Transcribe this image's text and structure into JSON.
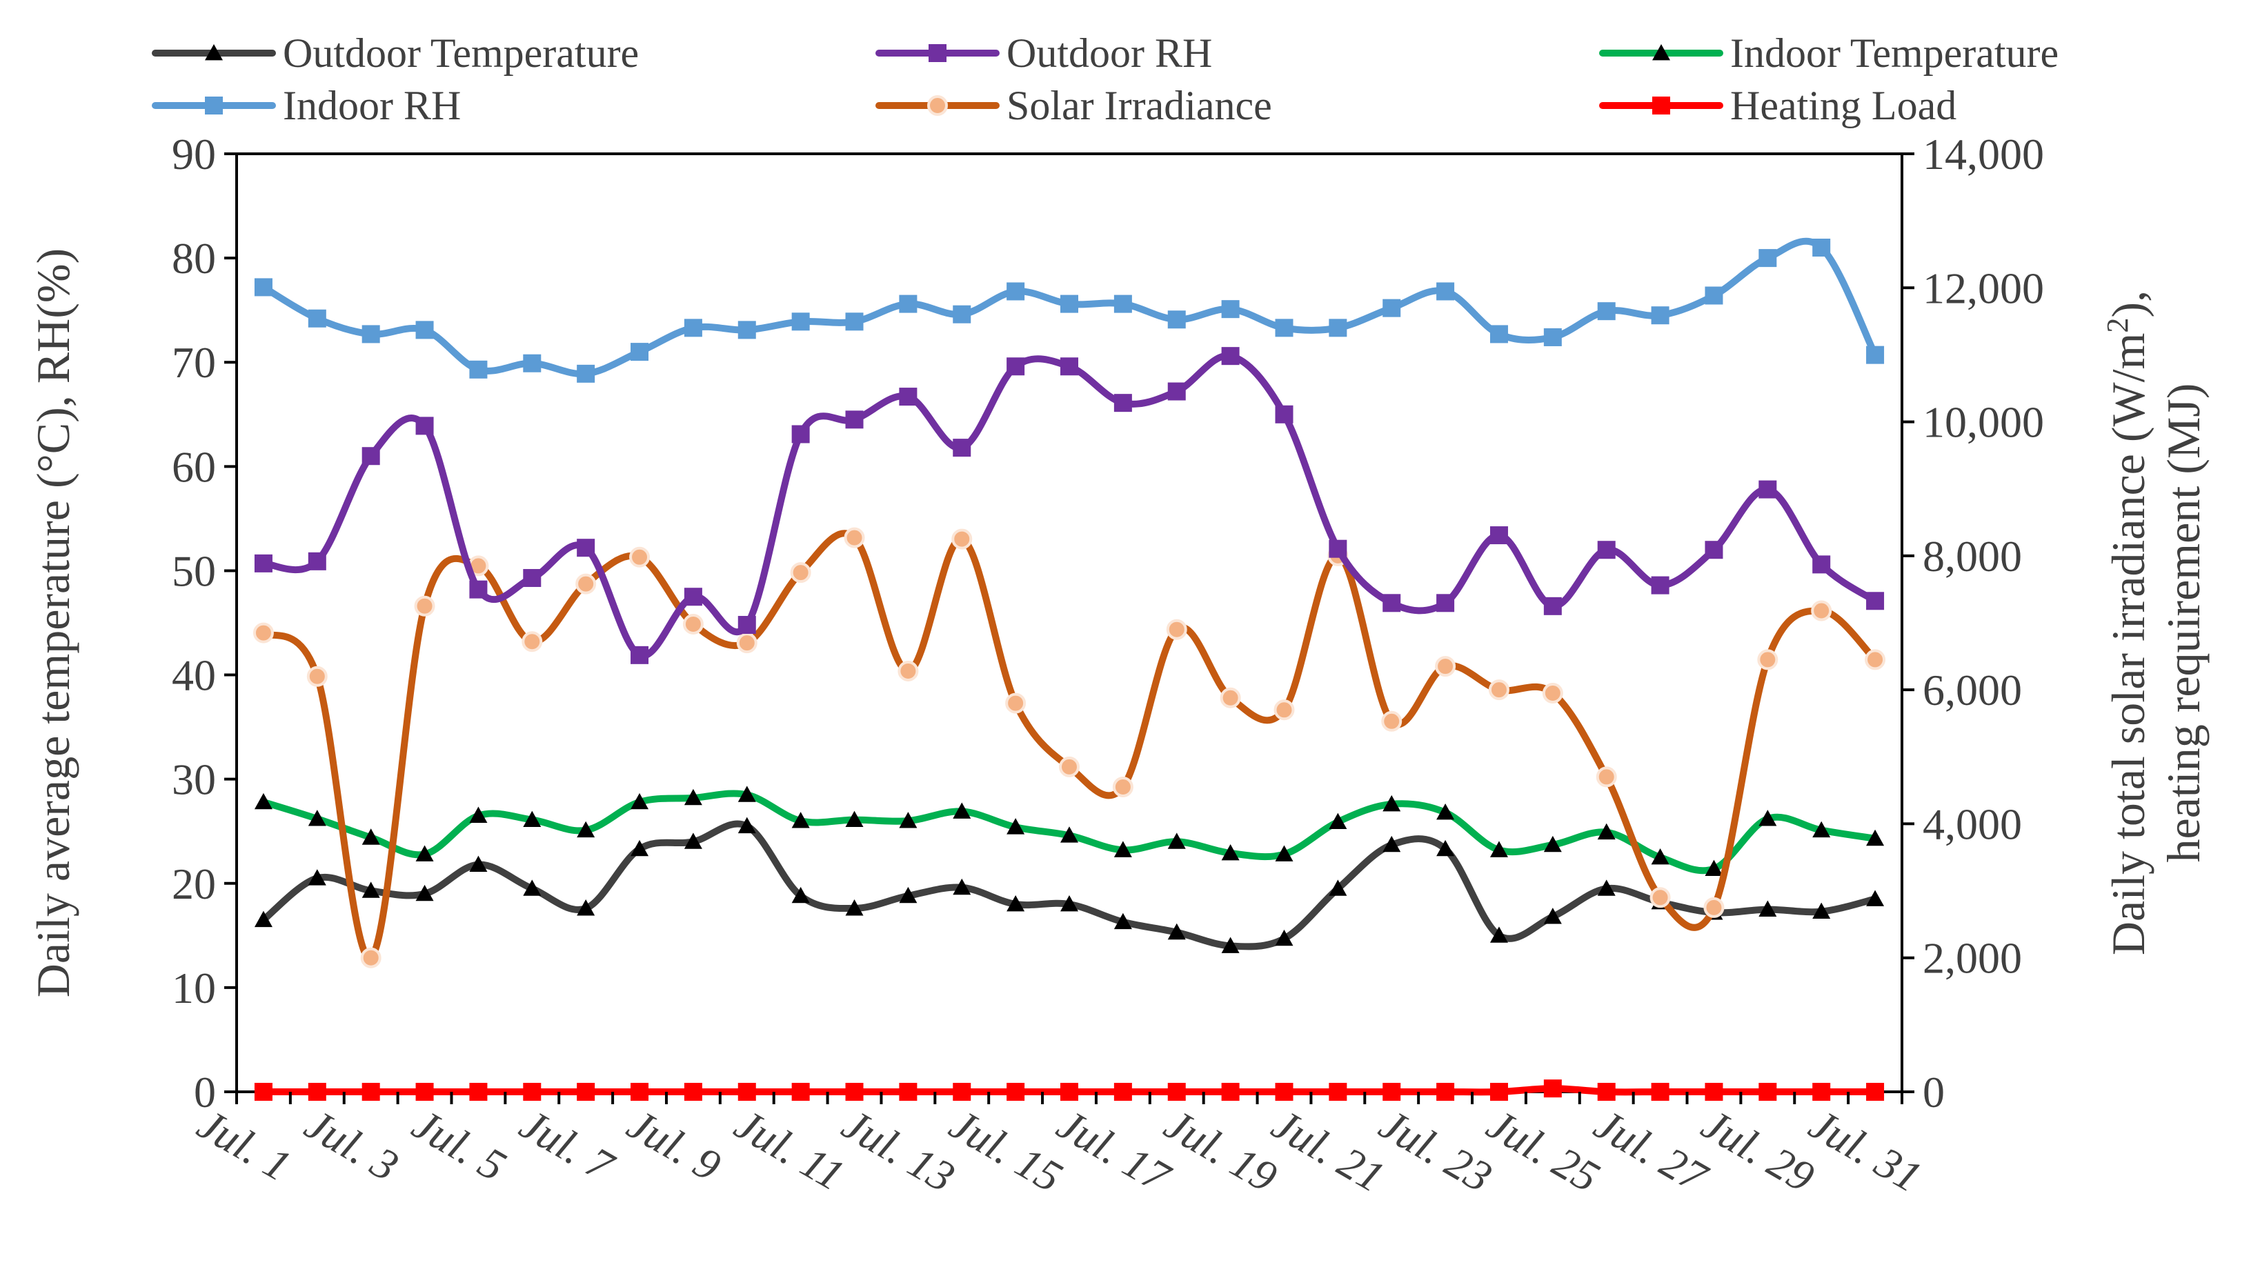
{
  "chart_data": {
    "type": "line",
    "categories": [
      "Jul. 1",
      "Jul. 2",
      "Jul. 3",
      "Jul. 4",
      "Jul. 5",
      "Jul. 6",
      "Jul. 7",
      "Jul. 8",
      "Jul. 9",
      "Jul. 10",
      "Jul. 11",
      "Jul. 12",
      "Jul. 13",
      "Jul. 14",
      "Jul. 15",
      "Jul. 16",
      "Jul. 17",
      "Jul. 18",
      "Jul. 19",
      "Jul. 20",
      "Jul. 21",
      "Jul. 22",
      "Jul. 23",
      "Jul. 24",
      "Jul. 25",
      "Jul. 26",
      "Jul. 27",
      "Jul. 28",
      "Jul. 29",
      "Jul. 30",
      "Jul. 31"
    ],
    "x_tick_labels": [
      "Jul. 1",
      "Jul. 3",
      "Jul. 5",
      "Jul. 7",
      "Jul. 9",
      "Jul. 11",
      "Jul. 13",
      "Jul. 15",
      "Jul. 17",
      "Jul. 19",
      "Jul. 21",
      "Jul. 23",
      "Jul. 25",
      "Jul. 27",
      "Jul. 29",
      "Jul. 31"
    ],
    "y_left": {
      "label": "Daily average temperature (°C), RH(%)",
      "range": [
        0,
        90
      ],
      "ticks": [
        "0",
        "10",
        "20",
        "30",
        "40",
        "50",
        "60",
        "70",
        "80",
        "90"
      ]
    },
    "y_right": {
      "label_line1_a": "Daily total solar irradiance (W/m",
      "label_line1_sup": "2",
      "label_line1_b": "),",
      "label_line2": "heating requirement (MJ)",
      "range": [
        0,
        14000
      ],
      "ticks": [
        "0",
        "2,000",
        "4,000",
        "6,000",
        "8,000",
        "10,000",
        "12,000",
        "14,000"
      ]
    },
    "legend_position": "top",
    "series": [
      {
        "name": "Outdoor Temperature",
        "axis": "left",
        "color": "#404040",
        "marker": "triangle",
        "values": [
          16.5,
          20.5,
          19.3,
          19.0,
          21.8,
          19.5,
          17.6,
          23.3,
          24.0,
          25.5,
          18.8,
          17.6,
          18.8,
          19.6,
          18.0,
          18.0,
          16.3,
          15.3,
          14.0,
          14.7,
          19.5,
          23.7,
          23.3,
          15.0,
          16.8,
          19.5,
          18.2,
          17.2,
          17.5,
          17.3,
          18.5
        ]
      },
      {
        "name": "Outdoor RH",
        "axis": "left",
        "color": "#7030A0",
        "marker": "square",
        "values": [
          50.7,
          50.9,
          61.0,
          63.9,
          48.2,
          49.3,
          52.2,
          41.9,
          47.5,
          44.8,
          63.1,
          64.5,
          66.7,
          61.8,
          69.6,
          69.6,
          66.1,
          67.2,
          70.6,
          65.0,
          52.1,
          46.9,
          46.9,
          53.4,
          46.6,
          52.0,
          48.6,
          52.0,
          57.8,
          50.6,
          47.1
        ]
      },
      {
        "name": "Indoor Temperature",
        "axis": "left",
        "color": "#00B050",
        "marker": "triangle",
        "values": [
          27.8,
          26.2,
          24.4,
          22.8,
          26.5,
          26.1,
          25.1,
          27.8,
          28.2,
          28.5,
          26.0,
          26.1,
          26.0,
          26.9,
          25.4,
          24.6,
          23.2,
          24.0,
          22.9,
          22.8,
          25.9,
          27.6,
          26.8,
          23.2,
          23.7,
          24.9,
          22.5,
          21.4,
          26.2,
          25.1,
          24.3
        ]
      },
      {
        "name": "Indoor RH",
        "axis": "left",
        "color": "#5B9BD5",
        "marker": "square",
        "values": [
          77.2,
          74.2,
          72.7,
          73.1,
          69.3,
          69.9,
          68.9,
          71.0,
          73.3,
          73.1,
          73.9,
          73.9,
          75.6,
          74.6,
          76.8,
          75.6,
          75.6,
          74.1,
          75.1,
          73.3,
          73.3,
          75.2,
          76.8,
          72.7,
          72.4,
          74.9,
          74.5,
          76.4,
          80.0,
          81.0,
          70.7
        ]
      },
      {
        "name": "Solar Irradiance",
        "axis": "right",
        "color": "#C55A11",
        "marker": "circle",
        "values": [
          6850,
          6200,
          2000,
          7250,
          7850,
          6720,
          7580,
          7980,
          6980,
          6700,
          7750,
          8270,
          6280,
          8250,
          5800,
          4850,
          4550,
          6900,
          5880,
          5700,
          8000,
          5530,
          6350,
          6000,
          5950,
          4700,
          2900,
          2750,
          6450,
          7180,
          6450
        ]
      },
      {
        "name": "Heating Load",
        "axis": "right",
        "color": "#FF0000",
        "marker": "square",
        "values": [
          0,
          0,
          0,
          0,
          0,
          0,
          0,
          0,
          0,
          0,
          0,
          0,
          0,
          0,
          0,
          0,
          0,
          0,
          0,
          0,
          0,
          0,
          0,
          0,
          50,
          0,
          0,
          0,
          0,
          0,
          0
        ]
      }
    ]
  }
}
